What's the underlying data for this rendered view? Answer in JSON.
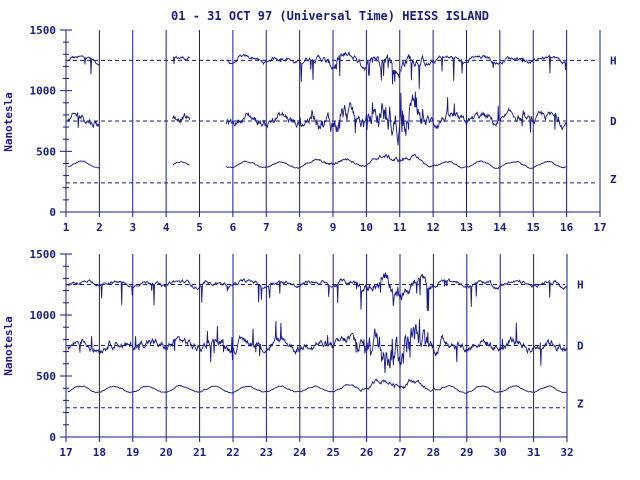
{
  "colors": {
    "ink": "#1a1a8c",
    "background": "#ffffff"
  },
  "chart_data": [
    {
      "type": "line",
      "title": "01 - 31 OCT 97 (Universal Time) HEISS ISLAND",
      "ylabel": "Nanotesla",
      "xlim": [
        1,
        17
      ],
      "ylim": [
        0,
        1500
      ],
      "x_ticks": [
        "1",
        "2",
        "3",
        "4",
        "5",
        "6",
        "7",
        "8",
        "9",
        "10",
        "11",
        "12",
        "13",
        "14",
        "15",
        "16",
        "17"
      ],
      "y_ticks": [
        "0",
        "500",
        "1000",
        "1500"
      ],
      "grid": "vertical lines at each day, dashed horizontal baselines",
      "baselines": [
        {
          "name": "H",
          "value": 1250
        },
        {
          "name": "D",
          "value": 750
        },
        {
          "name": "Z",
          "value": 240
        }
      ],
      "data_segments": [
        [
          1.05,
          2.0
        ],
        [
          4.2,
          4.7
        ],
        [
          5.8,
          16.0
        ]
      ],
      "series": [
        {
          "name": "H",
          "base": 1270,
          "noise": 20
        },
        {
          "name": "D",
          "base": 760,
          "noise": 45
        },
        {
          "name": "Z",
          "base": 390,
          "noise": 12
        }
      ]
    },
    {
      "type": "line",
      "ylabel": "Nanotesla",
      "xlim": [
        17,
        32
      ],
      "ylim": [
        0,
        1500
      ],
      "x_ticks": [
        "17",
        "18",
        "19",
        "20",
        "21",
        "22",
        "23",
        "24",
        "25",
        "26",
        "27",
        "28",
        "29",
        "30",
        "31",
        "32"
      ],
      "y_ticks": [
        "0",
        "500",
        "1000",
        "1500"
      ],
      "grid": "vertical lines at each day, dashed horizontal baselines",
      "baselines": [
        {
          "name": "H",
          "value": 1250
        },
        {
          "name": "D",
          "value": 750
        },
        {
          "name": "Z",
          "value": 240
        }
      ],
      "data_segments": [
        [
          17.05,
          32.0
        ]
      ],
      "series": [
        {
          "name": "H",
          "base": 1270,
          "noise": 20
        },
        {
          "name": "D",
          "base": 760,
          "noise": 45
        },
        {
          "name": "Z",
          "base": 390,
          "noise": 12
        }
      ]
    }
  ]
}
